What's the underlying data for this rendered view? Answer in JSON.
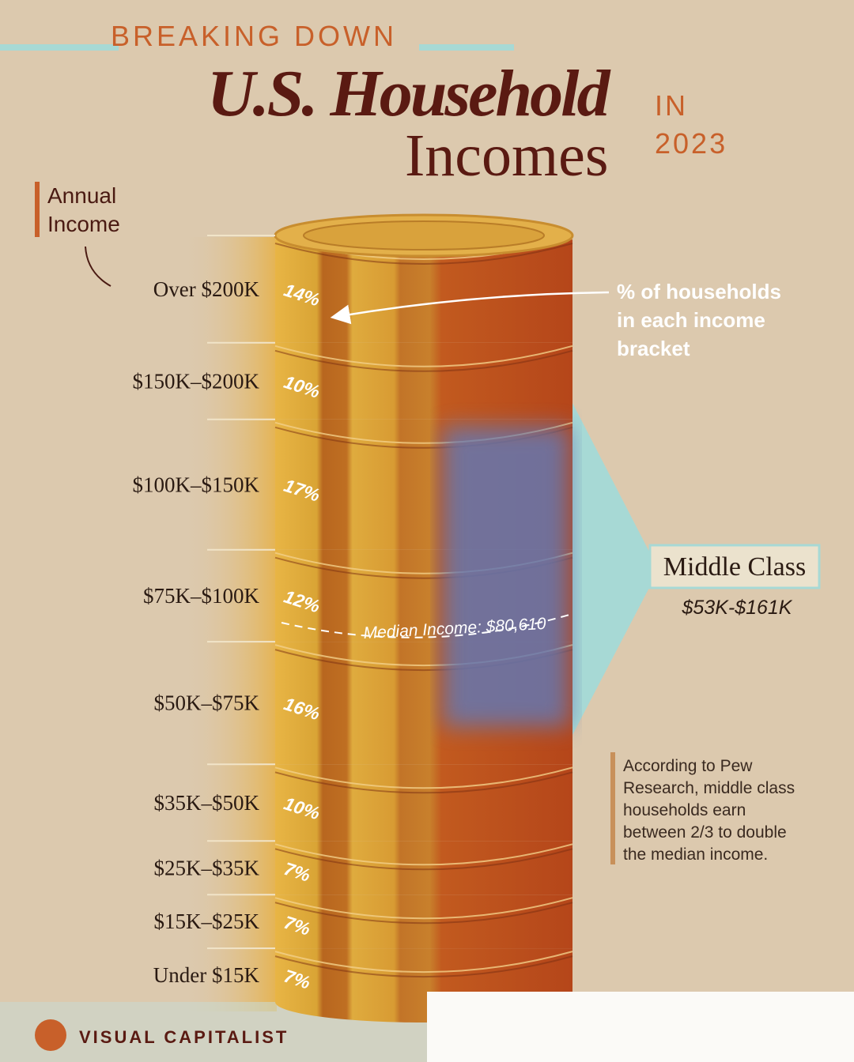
{
  "header": {
    "kicker": "BREAKING DOWN",
    "title_line1": "U.S. Household",
    "title_line2": "Incomes",
    "in": "IN",
    "year": "2023"
  },
  "axis_label": [
    "Annual",
    "Income"
  ],
  "callout": [
    "% of households",
    "in each income",
    "bracket"
  ],
  "middle_class": {
    "label": "Middle Class",
    "range": "$53K-$161K"
  },
  "median": "Median Income: $80,610",
  "note": [
    "According to Pew",
    "Research, middle class",
    "households earn",
    "between 2/3 to double",
    "the median income."
  ],
  "brand": "VISUAL CAPITALIST",
  "chart_data": {
    "type": "bar",
    "categories": [
      "Over $200K",
      "$150K–$200K",
      "$100K–$150K",
      "$75K–$100K",
      "$50K–$75K",
      "$35K–$50K",
      "$25K–$35K",
      "$15K–$25K",
      "Under $15K"
    ],
    "values": [
      14,
      10,
      17,
      12,
      16,
      10,
      7,
      7,
      7
    ],
    "value_labels": [
      "14%",
      "10%",
      "17%",
      "12%",
      "16%",
      "10%",
      "7%",
      "7%",
      "7%"
    ]
  }
}
